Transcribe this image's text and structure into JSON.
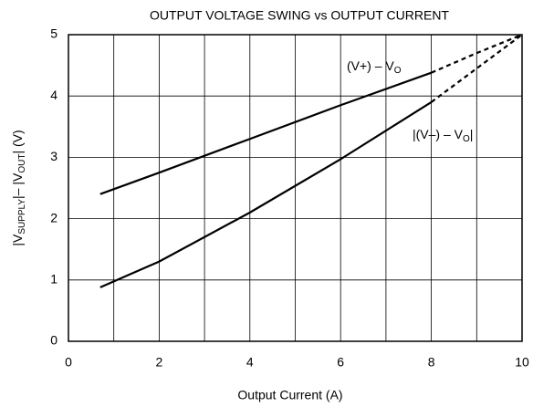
{
  "chart_data": {
    "type": "line",
    "title": "OUTPUT VOLTAGE SWING vs OUTPUT CURRENT",
    "x_label": "Output Current (A)",
    "y_label_parts": [
      {
        "text": "|V"
      },
      {
        "text": "SUPPLY",
        "sub": true
      },
      {
        "text": "|– |V"
      },
      {
        "text": "OUT",
        "sub": true
      },
      {
        "text": "| (V)"
      }
    ],
    "xlim": [
      0,
      10
    ],
    "ylim": [
      0,
      5
    ],
    "xticks": [
      0,
      2,
      4,
      6,
      8,
      10
    ],
    "yticks": [
      0,
      1,
      2,
      3,
      4,
      5
    ],
    "x_minor_grid": [
      1,
      3,
      5,
      7,
      9
    ],
    "grid": true,
    "color": "#000000",
    "series": [
      {
        "label_parts": [
          {
            "text": "(V+) – V"
          },
          {
            "text": "O",
            "sub": true
          }
        ],
        "solid": {
          "x": [
            0.7,
            2,
            4,
            6,
            8
          ],
          "values": [
            2.4,
            2.75,
            3.3,
            3.85,
            4.38
          ]
        },
        "dashed": {
          "x": [
            8,
            9,
            10
          ],
          "values": [
            4.38,
            4.7,
            5
          ]
        }
      },
      {
        "label_parts": [
          {
            "text": "|(V–) – V"
          },
          {
            "text": "O",
            "sub": true
          },
          {
            "text": "|"
          }
        ],
        "solid": {
          "x": [
            0.7,
            2,
            4,
            6,
            8
          ],
          "values": [
            0.88,
            1.3,
            2.1,
            2.97,
            3.9
          ]
        },
        "dashed": {
          "x": [
            8,
            9,
            10
          ],
          "values": [
            3.9,
            4.45,
            5
          ]
        }
      }
    ]
  }
}
